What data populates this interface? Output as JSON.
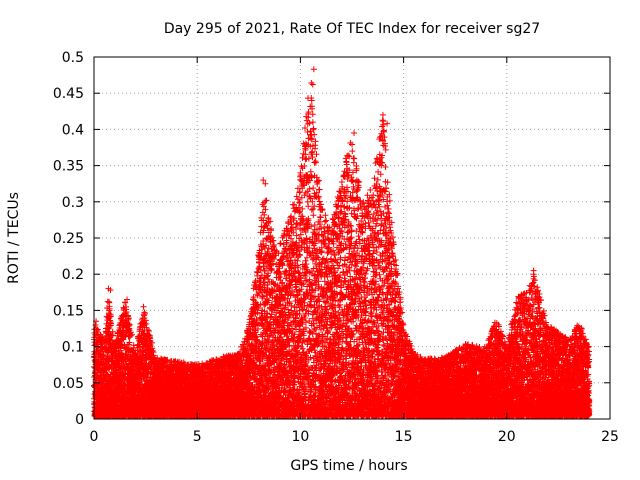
{
  "chart_data": {
    "type": "scatter",
    "title": "Day 295 of 2021, Rate Of TEC Index for receiver sg27",
    "xlabel": "GPS time / hours",
    "ylabel": "ROTI / TECUs",
    "xlim": [
      0,
      25
    ],
    "ylim": [
      0,
      0.5
    ],
    "xticks": [
      "0",
      "5",
      "10",
      "15",
      "20",
      "25"
    ],
    "yticks": [
      "0",
      "0.05",
      "0.1",
      "0.15",
      "0.2",
      "0.25",
      "0.3",
      "0.35",
      "0.4",
      "0.45",
      "0.5"
    ],
    "grid": true,
    "marker": "+",
    "color": "#ff0000",
    "envelope": [
      [
        0.0,
        0.135
      ],
      [
        0.5,
        0.11
      ],
      [
        0.7,
        0.18
      ],
      [
        1.0,
        0.1
      ],
      [
        1.5,
        0.165
      ],
      [
        2.0,
        0.095
      ],
      [
        2.4,
        0.155
      ],
      [
        3.0,
        0.085
      ],
      [
        4.0,
        0.08
      ],
      [
        5.0,
        0.075
      ],
      [
        6.0,
        0.085
      ],
      [
        7.0,
        0.09
      ],
      [
        7.5,
        0.13
      ],
      [
        8.0,
        0.24
      ],
      [
        8.2,
        0.33
      ],
      [
        8.8,
        0.23
      ],
      [
        9.5,
        0.28
      ],
      [
        10.0,
        0.34
      ],
      [
        10.5,
        0.48
      ],
      [
        11.0,
        0.3
      ],
      [
        11.5,
        0.27
      ],
      [
        12.0,
        0.33
      ],
      [
        12.5,
        0.395
      ],
      [
        13.0,
        0.3
      ],
      [
        13.5,
        0.33
      ],
      [
        14.0,
        0.42
      ],
      [
        14.5,
        0.25
      ],
      [
        15.0,
        0.13
      ],
      [
        15.5,
        0.09
      ],
      [
        16.0,
        0.085
      ],
      [
        17.0,
        0.085
      ],
      [
        18.0,
        0.105
      ],
      [
        19.0,
        0.1
      ],
      [
        19.5,
        0.14
      ],
      [
        20.0,
        0.1
      ],
      [
        20.5,
        0.17
      ],
      [
        21.0,
        0.175
      ],
      [
        21.3,
        0.205
      ],
      [
        22.0,
        0.13
      ],
      [
        23.0,
        0.11
      ],
      [
        23.5,
        0.135
      ],
      [
        24.0,
        0.1
      ]
    ],
    "sampling_interval_hours": 0.0025,
    "outliers": [
      {
        "x": 10.65,
        "y": 0.483
      },
      {
        "x": 10.6,
        "y": 0.462
      },
      {
        "x": 10.55,
        "y": 0.44
      },
      {
        "x": 10.55,
        "y": 0.387
      },
      {
        "x": 14.0,
        "y": 0.42
      },
      {
        "x": 14.2,
        "y": 0.408
      },
      {
        "x": 12.6,
        "y": 0.395
      },
      {
        "x": 14.1,
        "y": 0.377
      },
      {
        "x": 13.7,
        "y": 0.36
      },
      {
        "x": 12.2,
        "y": 0.36
      },
      {
        "x": 10.0,
        "y": 0.34
      },
      {
        "x": 8.2,
        "y": 0.33
      },
      {
        "x": 8.3,
        "y": 0.325
      },
      {
        "x": 21.3,
        "y": 0.205
      },
      {
        "x": 21.3,
        "y": 0.2
      },
      {
        "x": 20.7,
        "y": 0.172
      },
      {
        "x": 21.1,
        "y": 0.175
      },
      {
        "x": 0.7,
        "y": 0.18
      },
      {
        "x": 0.8,
        "y": 0.178
      },
      {
        "x": 1.6,
        "y": 0.165
      },
      {
        "x": 2.4,
        "y": 0.155
      },
      {
        "x": 0.1,
        "y": 0.135
      }
    ]
  }
}
